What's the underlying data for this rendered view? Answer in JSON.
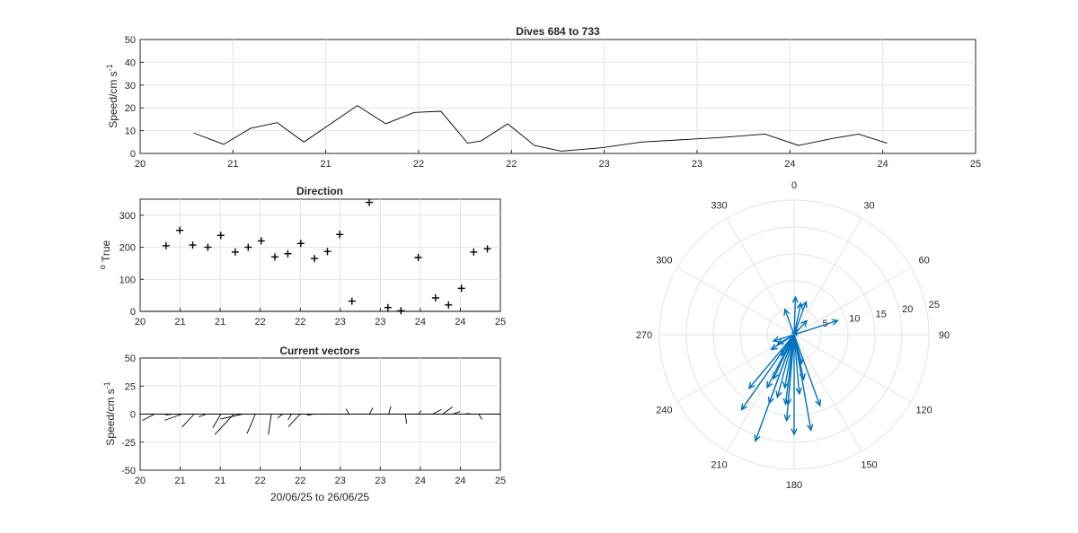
{
  "chart_data": [
    {
      "id": "speed",
      "type": "line",
      "title": "Dives 684 to 733",
      "xlabel": "",
      "ylabel": "Speed/cm s",
      "ylabel_sup": "-1",
      "xlim": [
        20,
        25
      ],
      "ylim": [
        0,
        50
      ],
      "yticks": [
        0,
        10,
        20,
        30,
        40,
        50
      ],
      "xtick_labels": [
        "20",
        "21",
        "21",
        "22",
        "22",
        "23",
        "23",
        "24",
        "24",
        "25"
      ],
      "grid": true,
      "series": [
        {
          "x": [
            20.32,
            20.5,
            20.66,
            20.82,
            20.98,
            21.14,
            21.3,
            21.47,
            21.64,
            21.8,
            21.96,
            22.04,
            22.2,
            22.36,
            22.52,
            22.76,
            23.0,
            23.24,
            23.48,
            23.74,
            23.94,
            24.14,
            24.3,
            24.47
          ],
          "y": [
            9,
            4,
            11,
            13.5,
            5,
            13,
            21,
            13,
            18,
            18.5,
            4.5,
            5.5,
            13,
            3.5,
            1,
            2.5,
            5,
            6,
            7,
            8.5,
            3.5,
            6.5,
            8.5,
            4.5
          ]
        }
      ]
    },
    {
      "id": "direction",
      "type": "scatter",
      "title": "Direction",
      "xlabel": "",
      "ylabel": "True",
      "ylabel_prefix": "o",
      "xlim": [
        20,
        25
      ],
      "ylim": [
        0,
        350
      ],
      "yticks": [
        0,
        100,
        200,
        300
      ],
      "xtick_labels": [
        "20",
        "21",
        "21",
        "22",
        "22",
        "23",
        "23",
        "24",
        "24",
        "25"
      ],
      "grid": true,
      "marker": "+",
      "series": [
        {
          "x": [
            20.36,
            20.55,
            20.73,
            20.94,
            21.12,
            21.32,
            21.5,
            21.68,
            21.87,
            22.05,
            22.23,
            22.42,
            22.6,
            22.77,
            22.94,
            23.18,
            23.44,
            23.62,
            23.86,
            24.1,
            24.28,
            24.46,
            24.63,
            24.82
          ],
          "y": [
            205,
            253,
            207,
            200,
            237,
            185,
            200,
            220,
            170,
            180,
            212,
            165,
            187,
            240,
            32,
            340,
            12,
            2,
            168,
            42,
            20,
            72,
            185,
            195
          ]
        }
      ]
    },
    {
      "id": "vectors",
      "type": "line",
      "title": "Current vectors",
      "xlabel": "20/06/25 to 26/06/25",
      "ylabel": "Speed/cm s",
      "ylabel_sup": "-1",
      "xlim": [
        20,
        25
      ],
      "ylim": [
        -50,
        50
      ],
      "yticks": [
        -50,
        -25,
        0,
        25,
        50
      ],
      "xtick_labels": [
        "20",
        "21",
        "21",
        "22",
        "22",
        "23",
        "23",
        "24",
        "24",
        "25"
      ],
      "grid": true,
      "sticks": {
        "x": [
          20.2,
          20.45,
          20.58,
          20.75,
          20.92,
          21.12,
          21.3,
          21.42,
          21.6,
          21.82,
          21.98,
          22.1,
          22.22,
          22.4,
          22.55,
          22.9,
          23.18,
          23.45,
          23.68,
          23.86,
          24.06,
          24.2,
          24.34,
          24.5,
          24.7
        ],
        "angle_deg": [
          230,
          260,
          240,
          210,
          240,
          200,
          210,
          250,
          195,
          185,
          220,
          200,
          210,
          250,
          260,
          340,
          20,
          10,
          175,
          30,
          50,
          40,
          60,
          80,
          160
        ],
        "speed": [
          9,
          4,
          11,
          13.5,
          5,
          13,
          21,
          13,
          18,
          18.5,
          4.5,
          5.5,
          13,
          3.5,
          1,
          5,
          6,
          7,
          8.5,
          3.5,
          6.5,
          8.5,
          4.5,
          3,
          5
        ]
      }
    },
    {
      "id": "compass",
      "type": "polar-vectors",
      "title": "",
      "rlim": [
        0,
        25
      ],
      "rticks": [
        5,
        10,
        15,
        20,
        25
      ],
      "theta_ticks": [
        0,
        30,
        60,
        90,
        120,
        150,
        180,
        210,
        240,
        270,
        300,
        330
      ],
      "vectors": {
        "angle_deg": [
          205,
          253,
          207,
          200,
          237,
          185,
          200,
          220,
          170,
          180,
          212,
          165,
          187,
          240,
          32,
          340,
          12,
          2,
          168,
          42,
          20,
          72,
          185,
          195,
          160,
          190,
          215,
          175
        ],
        "speed": [
          9,
          4,
          11,
          13.5,
          5,
          13,
          21,
          13,
          18,
          18.5,
          4.5,
          5.5,
          13,
          3.5,
          1,
          5,
          6,
          7,
          8.5,
          3.5,
          6.5,
          8.5,
          16,
          12,
          14,
          10,
          17,
          11
        ]
      }
    }
  ],
  "colors": {
    "line": "#000000",
    "arrow": "#0072BD",
    "grid": "#e3e3e3",
    "axis": "#262626"
  }
}
